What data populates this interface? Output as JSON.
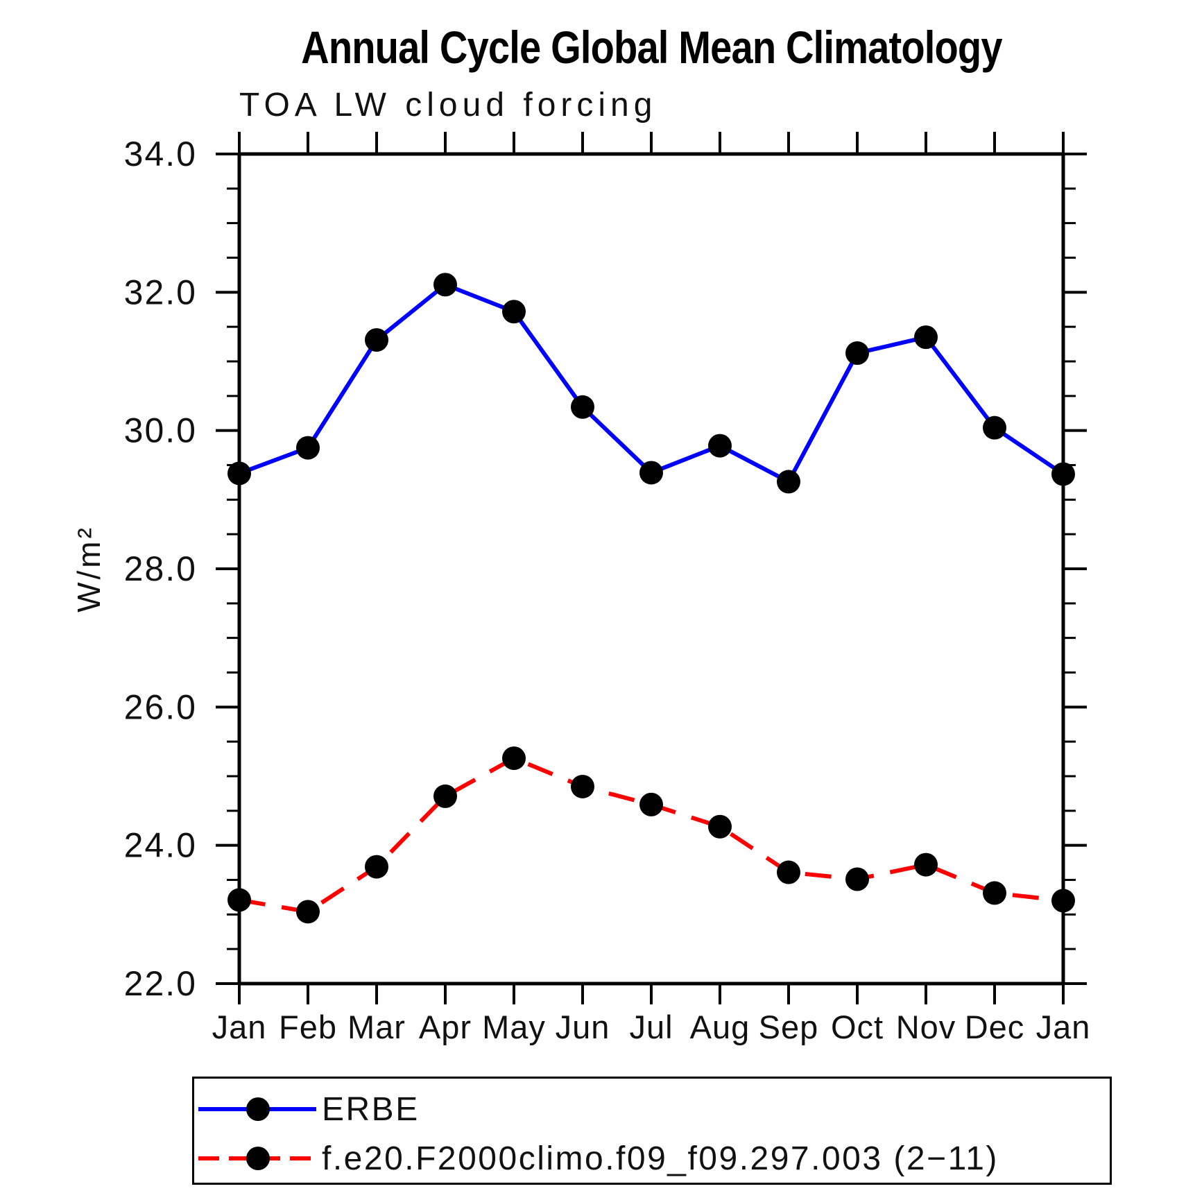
{
  "chart_data": {
    "type": "line",
    "title": "Annual Cycle Global Mean Climatology",
    "subtitle": "TOA LW cloud forcing",
    "ylabel": "W/m²",
    "xlabel": "",
    "x_labels": [
      "Jan",
      "Feb",
      "Mar",
      "Apr",
      "May",
      "Jun",
      "Jul",
      "Aug",
      "Sep",
      "Oct",
      "Nov",
      "Dec",
      "Jan"
    ],
    "ylim": [
      22.0,
      34.0
    ],
    "ytick_values": [
      22.0,
      24.0,
      26.0,
      28.0,
      30.0,
      32.0,
      34.0
    ],
    "ytick_labels": [
      "22.0",
      "24.0",
      "26.0",
      "28.0",
      "30.0",
      "32.0",
      "34.0"
    ],
    "ytick_minor_step": 0.5,
    "grid": false,
    "legend_position": "bottom",
    "axis_color": "#000000",
    "marker_color": "#000000",
    "series": [
      {
        "name": "ERBE",
        "color": "#0000ff",
        "line_style": "solid",
        "marker": "circle",
        "values": [
          29.38,
          29.75,
          31.31,
          32.11,
          31.72,
          30.34,
          29.39,
          29.78,
          29.26,
          31.12,
          31.35,
          30.04,
          29.37
        ]
      },
      {
        "name": "f.e20.F2000climo.f09_f09.297.003 (2−11)",
        "color": "#ff0000",
        "line_style": "dashed",
        "marker": "circle",
        "values": [
          23.21,
          23.04,
          23.69,
          24.71,
          25.26,
          24.85,
          24.59,
          24.27,
          23.61,
          23.51,
          23.72,
          23.31,
          23.2
        ]
      }
    ]
  }
}
